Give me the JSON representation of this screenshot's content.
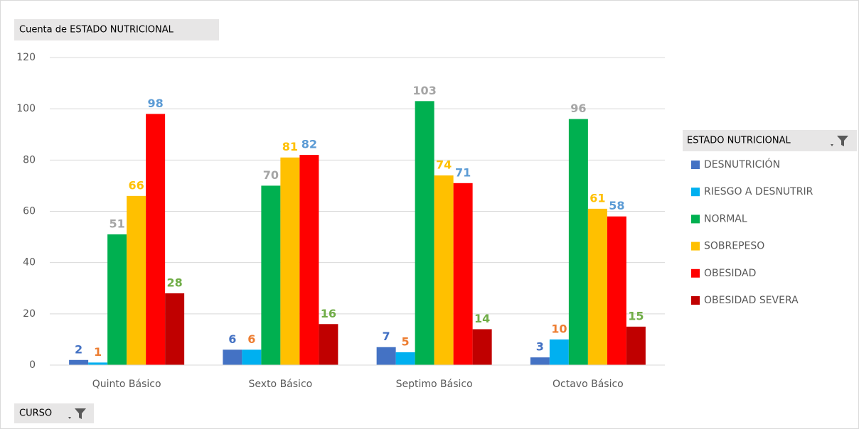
{
  "chart_data": {
    "type": "bar",
    "title": "Cuenta de ESTADO NUTRICIONAL",
    "legend_title": "ESTADO NUTRICIONAL",
    "x_label": "CURSO",
    "categories": [
      "Quinto Básico",
      "Sexto Básico",
      "Septimo Básico",
      "Octavo Básico"
    ],
    "series": [
      {
        "name": "DESNUTRICIÓN",
        "color": "#4472c4",
        "label_color": "#4472c4",
        "values": [
          2,
          6,
          7,
          3
        ]
      },
      {
        "name": "RIESGO A DESNUTRIR",
        "color": "#00b0f0",
        "label_color": "#ed7d31",
        "values": [
          1,
          6,
          5,
          10
        ]
      },
      {
        "name": "NORMAL",
        "color": "#00b050",
        "label_color": "#a5a5a5",
        "values": [
          51,
          70,
          103,
          96
        ]
      },
      {
        "name": "SOBREPESO",
        "color": "#ffc000",
        "label_color": "#ffc000",
        "values": [
          66,
          81,
          74,
          61
        ]
      },
      {
        "name": "OBESIDAD",
        "color": "#ff0000",
        "label_color": "#5b9bd5",
        "values": [
          98,
          82,
          71,
          58
        ]
      },
      {
        "name": "OBESIDAD SEVERA",
        "color": "#c00000",
        "label_color": "#70ad47",
        "values": [
          28,
          16,
          14,
          15
        ]
      }
    ],
    "ylim": [
      0,
      120
    ],
    "yticks": [
      0,
      20,
      40,
      60,
      80,
      100,
      120
    ],
    "grid": true,
    "legend": "right"
  }
}
